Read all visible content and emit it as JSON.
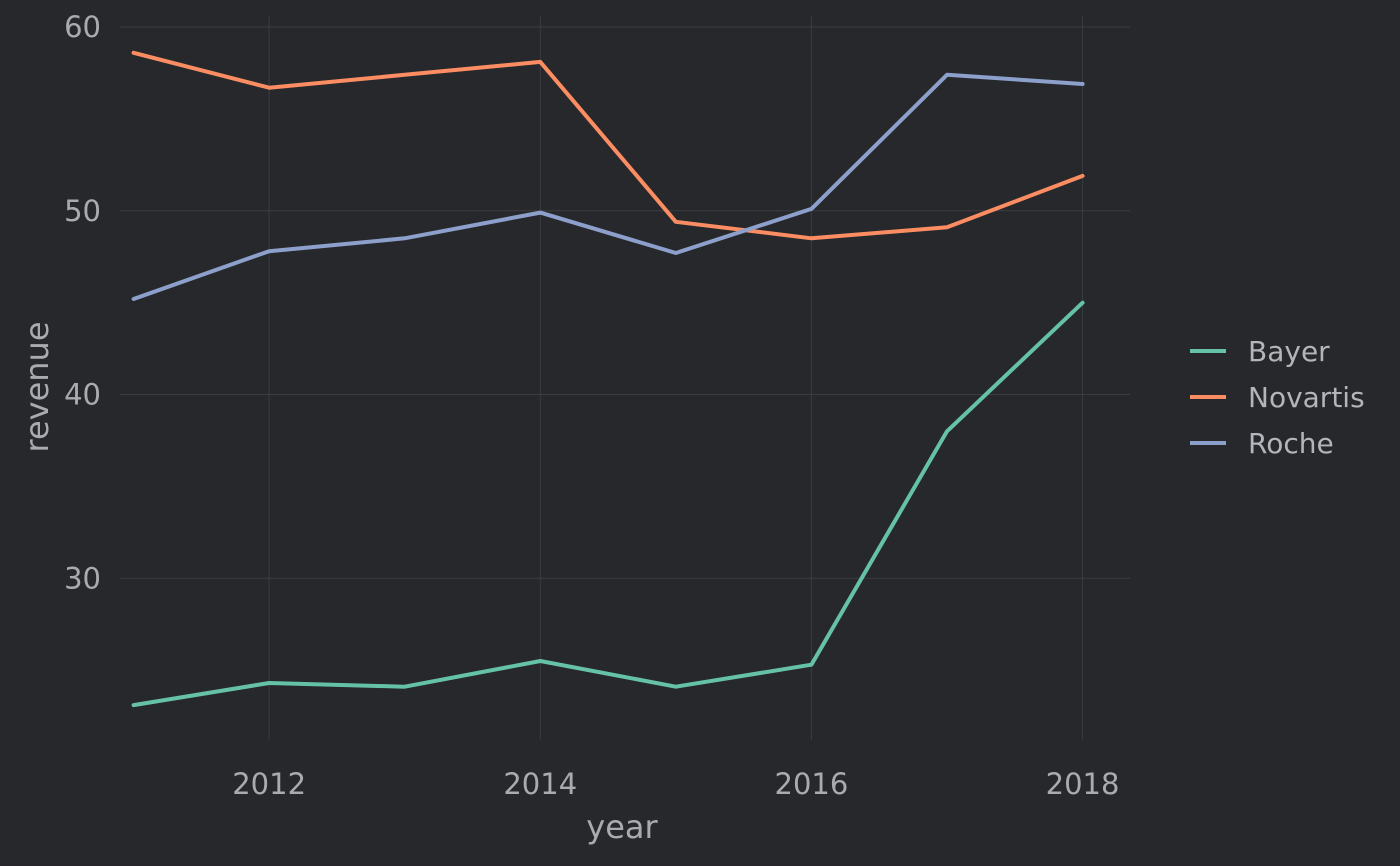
{
  "chart_data": {
    "type": "line",
    "title": "",
    "xlabel": "year",
    "ylabel": "revenue",
    "x": [
      2011,
      2012,
      2013,
      2014,
      2015,
      2016,
      2017,
      2018
    ],
    "xticks": [
      "2012",
      "2014",
      "2016",
      "2018"
    ],
    "yticks": [
      "30",
      "40",
      "50",
      "60"
    ],
    "xlim": [
      2010.9,
      2018.35
    ],
    "ylim": [
      21.2,
      60.6
    ],
    "grid": true,
    "legend_position": "right",
    "series": [
      {
        "name": "Bayer",
        "color": "#66c2a5",
        "values": [
          23.1,
          24.3,
          24.1,
          25.5,
          24.1,
          25.3,
          38.0,
          45.0
        ]
      },
      {
        "name": "Novartis",
        "color": "#fc8d62",
        "values": [
          58.6,
          56.7,
          57.4,
          58.1,
          49.4,
          48.5,
          49.1,
          51.9
        ]
      },
      {
        "name": "Roche",
        "color": "#8da0cb",
        "values": [
          45.2,
          47.8,
          48.5,
          49.9,
          47.7,
          50.1,
          57.4,
          56.9
        ]
      }
    ]
  }
}
